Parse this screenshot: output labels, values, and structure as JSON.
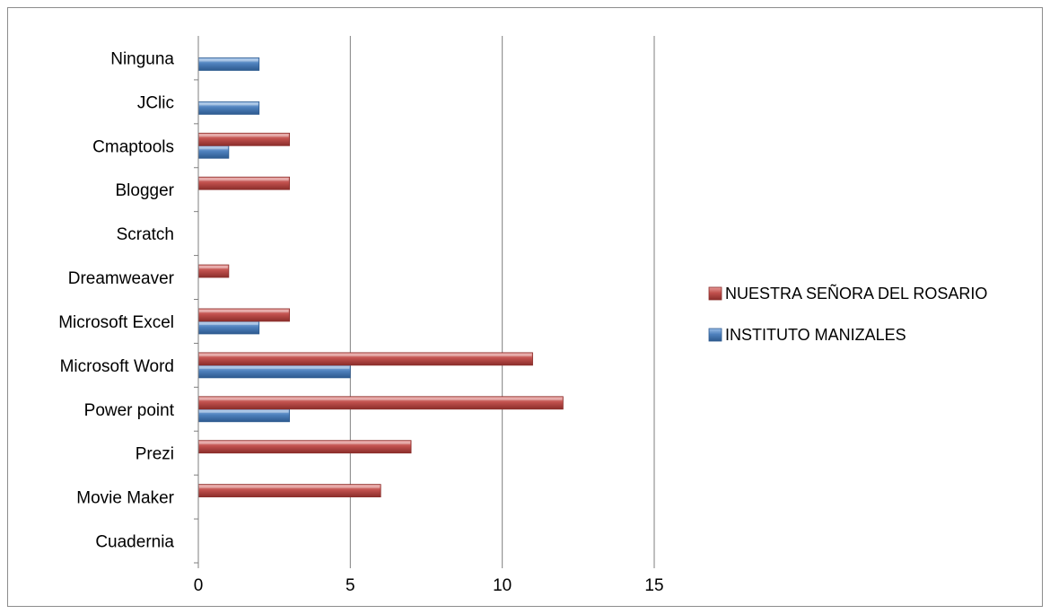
{
  "chart_data": {
    "type": "bar",
    "orientation": "horizontal",
    "title": "",
    "xlabel": "",
    "ylabel": "",
    "categories": [
      "Cuadernia",
      "Movie Maker",
      "Prezi",
      "Power point",
      "Microsoft Word",
      "Microsoft Excel",
      "Dreamweaver",
      "Scratch",
      "Blogger",
      "Cmaptools",
      "JClic",
      "Ninguna"
    ],
    "series": [
      {
        "name": "INSTITUTO MANIZALES",
        "color": "#4f81bd",
        "values": [
          0,
          0,
          0,
          3,
          5,
          2,
          0,
          0,
          0,
          1,
          2,
          2
        ]
      },
      {
        "name": "NUESTRA SEÑORA DEL ROSARIO",
        "color": "#c0504d",
        "values": [
          0,
          6,
          7,
          12,
          11,
          3,
          1,
          0,
          3,
          3,
          0,
          0
        ]
      }
    ],
    "xlim": [
      0,
      15
    ],
    "xticks": [
      0,
      5,
      10,
      15
    ],
    "grid": true,
    "legend_position": "right",
    "legend_order": [
      "NUESTRA SEÑORA DEL ROSARIO",
      "INSTITUTO MANIZALES"
    ]
  }
}
